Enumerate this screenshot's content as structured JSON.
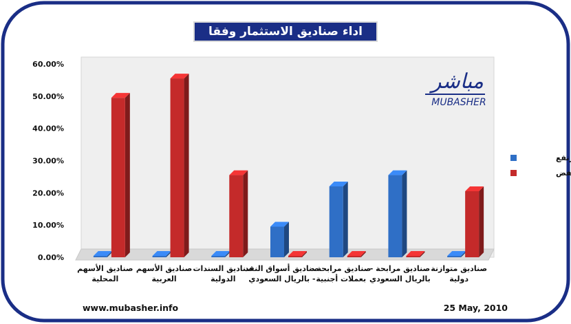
{
  "chart_data": {
    "type": "bar",
    "title": "اداء صناديق الاستثمار وفقا لفئتها",
    "categories": [
      [
        "صناديق الأسهم",
        "المحلية"
      ],
      [
        "صناديق الأسهم",
        "العربية"
      ],
      [
        "صناديق السندات",
        "الدولية"
      ],
      [
        "صناديق أسواق النقد",
        "- بالريال السعودي"
      ],
      [
        "صناديق مرابحة -",
        "بعملات أجنبية"
      ],
      [
        "صناديق مرابحة -",
        "بالريال السعودي"
      ],
      [
        "صناديق متوازنة",
        "دولية"
      ]
    ],
    "series": [
      {
        "name": "مرتفع",
        "color": "#2f6fc6",
        "values": [
          0,
          0,
          0,
          9.5,
          22.0,
          25.5,
          0
        ]
      },
      {
        "name": "منخفض",
        "color": "#c42a2a",
        "values": [
          49.5,
          55.5,
          25.5,
          0,
          0,
          0,
          20.5
        ]
      }
    ],
    "yticks": [
      "60.00%",
      "50.00%",
      "40.00%",
      "30.00%",
      "20.00%",
      "10.00%",
      "0.00%"
    ],
    "ylim": [
      0,
      60
    ],
    "legend_position": "right",
    "grid": false
  },
  "logo": {
    "arabic": "مباشر",
    "latin": "MUBASHER"
  },
  "footer": {
    "website": "www.mubasher.info",
    "date": "25 May, 2010"
  },
  "colors": {
    "frame": "#1a2e86",
    "title_bg": "#1a2e86",
    "plot_bg": "#eeeeee"
  }
}
